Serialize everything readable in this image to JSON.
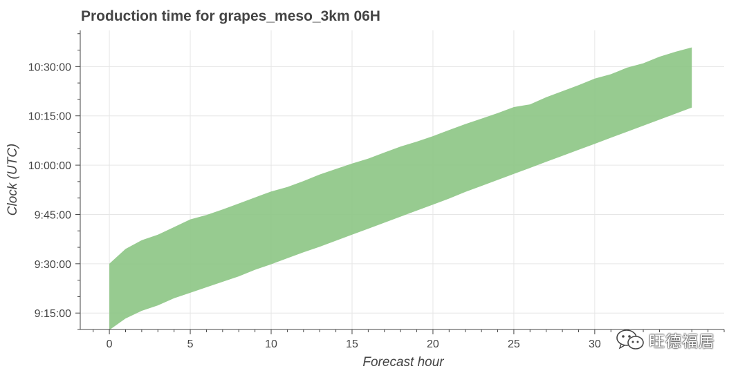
{
  "chart_data": {
    "type": "area",
    "title": "Production time for grapes_meso_3km 06H",
    "xlabel": "Forecast hour",
    "ylabel": "Clock (UTC)",
    "xlim": [
      -1.8,
      38.0
    ],
    "ylim": [
      "9:10:00",
      "10:41:00"
    ],
    "x_ticks": [
      0,
      5,
      10,
      15,
      20,
      25,
      30
    ],
    "y_ticks": [
      "9:15:00",
      "9:30:00",
      "9:45:00",
      "10:00:00",
      "10:15:00",
      "10:30:00"
    ],
    "y_tick_labels": [
      "9:15:00",
      "9:30:00",
      "9:45:00",
      "10:00:00",
      "10:15:00",
      "10:30:00"
    ],
    "grid": true,
    "fill_color": "#8cc584",
    "x": [
      0,
      1,
      2,
      3,
      4,
      5,
      6,
      7,
      8,
      9,
      10,
      11,
      12,
      13,
      14,
      15,
      16,
      17,
      18,
      19,
      20,
      21,
      22,
      23,
      24,
      25,
      26,
      27,
      28,
      29,
      30,
      31,
      32,
      33,
      34,
      35,
      36
    ],
    "upper": [
      "9:30:00",
      "9:34:30",
      "9:37:10",
      "9:38:50",
      "9:41:10",
      "9:43:30",
      "9:44:50",
      "9:46:30",
      "9:48:20",
      "9:50:10",
      "9:52:00",
      "9:53:20",
      "9:55:10",
      "9:57:10",
      "9:58:50",
      "10:00:30",
      "10:02:00",
      "10:03:50",
      "10:05:40",
      "10:07:10",
      "10:08:50",
      "10:10:40",
      "10:12:30",
      "10:14:10",
      "10:15:50",
      "10:17:40",
      "10:18:30",
      "10:20:40",
      "10:22:30",
      "10:24:20",
      "10:26:20",
      "10:27:40",
      "10:29:40",
      "10:31:00",
      "10:33:00",
      "10:34:30",
      "10:35:50"
    ],
    "lower": [
      "9:09:50",
      "9:13:20",
      "9:15:40",
      "9:17:20",
      "9:19:30",
      "9:21:10",
      "9:22:50",
      "9:24:30",
      "9:26:10",
      "9:28:10",
      "9:29:50",
      "9:31:40",
      "9:33:30",
      "9:35:10",
      "9:37:00",
      "9:38:50",
      "9:40:40",
      "9:42:30",
      "9:44:20",
      "9:46:10",
      "9:48:00",
      "9:49:50",
      "9:51:50",
      "9:53:40",
      "9:55:30",
      "9:57:20",
      "9:59:10",
      "10:01:00",
      "10:02:50",
      "10:04:40",
      "10:06:30",
      "10:08:20",
      "10:10:10",
      "10:12:00",
      "10:13:50",
      "10:15:40",
      "10:17:30"
    ]
  },
  "watermark": {
    "text": "旺德福居",
    "icon": "wechat-icon"
  }
}
